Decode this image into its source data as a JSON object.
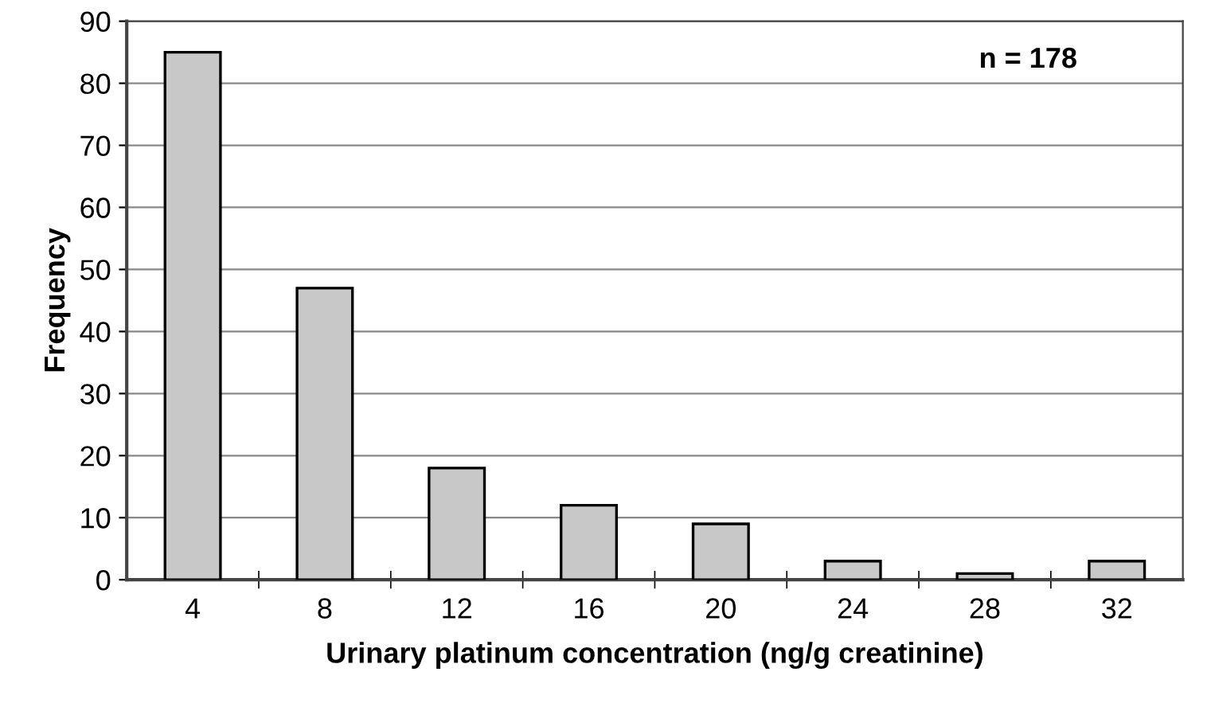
{
  "chart_data": {
    "type": "bar",
    "xlabel": "Urinary platinum concentration (ng/g creatinine)",
    "ylabel": "Frequency",
    "categories": [
      "4",
      "8",
      "12",
      "16",
      "20",
      "24",
      "28",
      "32"
    ],
    "values": [
      85,
      47,
      18,
      12,
      9,
      3,
      1,
      3
    ],
    "color": "#c8c8c8",
    "ylim": [
      0,
      90
    ],
    "yticks": [
      0,
      10,
      20,
      30,
      40,
      50,
      60,
      70,
      80,
      90
    ],
    "grid": "y",
    "legend": false,
    "annotations": [
      "n = 178"
    ]
  }
}
